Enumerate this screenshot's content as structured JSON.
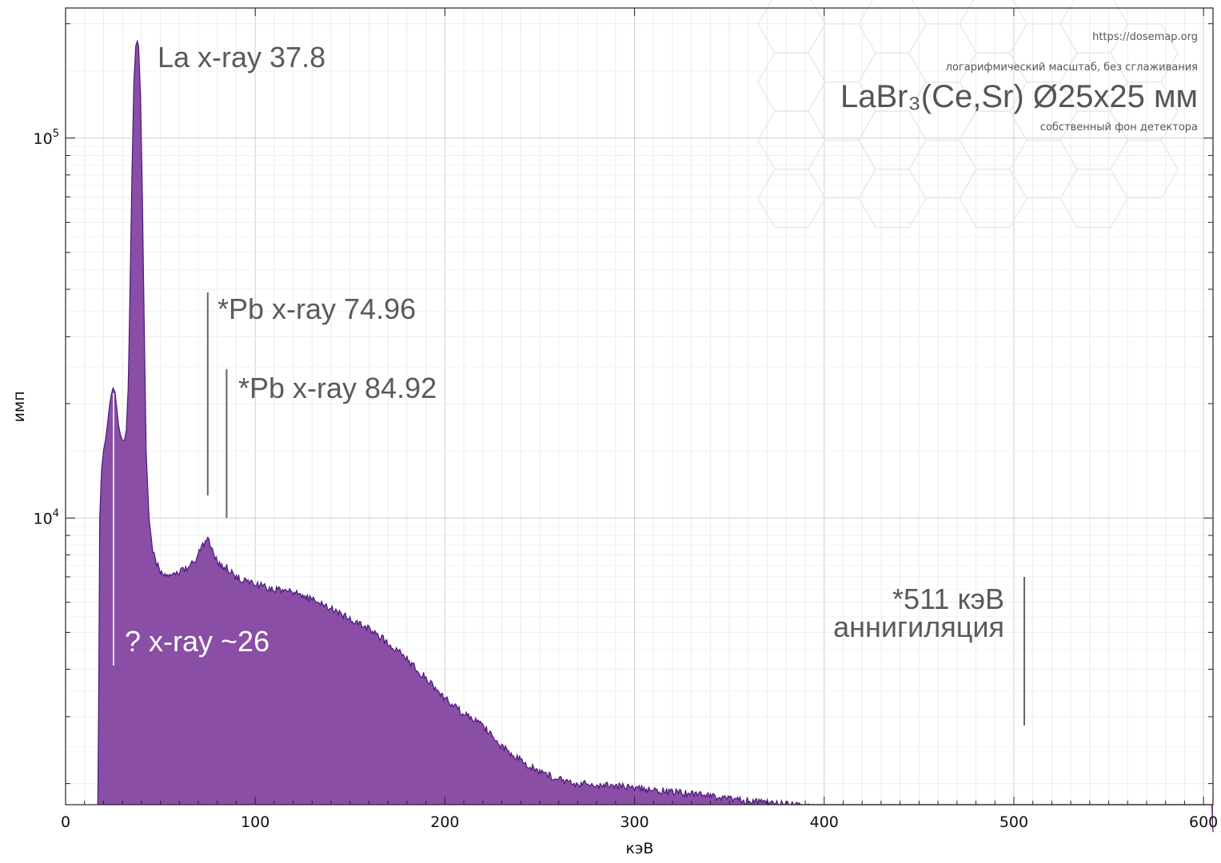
{
  "header": {
    "url": "https://dosemap.org",
    "scale_note": "логарифмический масштаб, без сглаживания",
    "title": "LaBr₃(Ce,Sr) Ø25x25 мм",
    "subtitle": "собственный фон детектора"
  },
  "chart_data": {
    "type": "area",
    "xlabel": "кэВ",
    "ylabel": "имп",
    "xlim": [
      0,
      605
    ],
    "ylim": [
      1760,
      220000
    ],
    "y_scale": "log",
    "grid": true,
    "x_ticks": [
      "0",
      "100",
      "200",
      "300",
      "400",
      "500",
      "600"
    ],
    "y_ticks": [
      {
        "base": "10",
        "exp": "4"
      },
      {
        "base": "10",
        "exp": "5"
      }
    ],
    "fill_color": "#8a4ea6",
    "line_color": "#4b1a78",
    "series": [
      {
        "x": [
          17,
          17.5,
          18,
          19,
          20,
          21,
          22,
          23,
          24,
          25,
          26,
          27,
          28,
          29,
          30,
          31,
          32,
          33,
          34,
          35,
          36,
          37,
          37.8,
          38.5,
          39.5,
          40.5,
          41.5,
          42.5,
          44,
          46,
          48,
          50,
          53,
          56,
          60,
          64,
          68,
          71,
          73,
          74.96,
          77,
          80,
          83,
          84.92,
          87,
          90,
          100,
          110,
          120,
          130,
          140,
          150,
          160,
          170,
          180,
          190,
          200,
          210,
          220,
          230,
          240,
          250,
          260,
          270,
          280,
          290,
          300,
          320,
          340,
          360,
          380,
          400,
          420,
          440,
          460,
          480,
          495,
          500,
          505,
          511,
          518,
          525,
          540,
          560,
          580,
          600,
          605
        ],
        "y": [
          1760,
          3500,
          10000,
          13500,
          15000,
          16000,
          17500,
          19500,
          21000,
          22000,
          21500,
          19500,
          17500,
          16500,
          16000,
          16000,
          17000,
          22000,
          40000,
          80000,
          140000,
          175000,
          180000,
          175000,
          130000,
          70000,
          32000,
          15000,
          10000,
          8200,
          7600,
          7200,
          7000,
          7100,
          7200,
          7400,
          7700,
          8200,
          8600,
          8900,
          8300,
          7600,
          7400,
          7500,
          7200,
          7000,
          6700,
          6500,
          6350,
          6100,
          5800,
          5400,
          5100,
          4700,
          4250,
          3800,
          3350,
          3050,
          2850,
          2500,
          2300,
          2150,
          2050,
          2000,
          1990,
          1970,
          1950,
          1900,
          1850,
          1800,
          1760,
          1720,
          1700,
          1690,
          1660,
          1630,
          1610,
          1640,
          1700,
          1720,
          1660,
          1600,
          1560,
          1530,
          1510,
          1500,
          1490
        ]
      }
    ],
    "annotations": [
      {
        "text": "La x-ray 37.8",
        "x": 37.8
      },
      {
        "text": "*Pb x-ray 74.96",
        "x": 74.96
      },
      {
        "text": "*Pb x-ray 84.92",
        "x": 84.92
      },
      {
        "text": "? x-ray ~26",
        "x": 26
      },
      {
        "text": "*511 кэВ",
        "text2": "аннигиляция",
        "x": 511
      }
    ]
  }
}
